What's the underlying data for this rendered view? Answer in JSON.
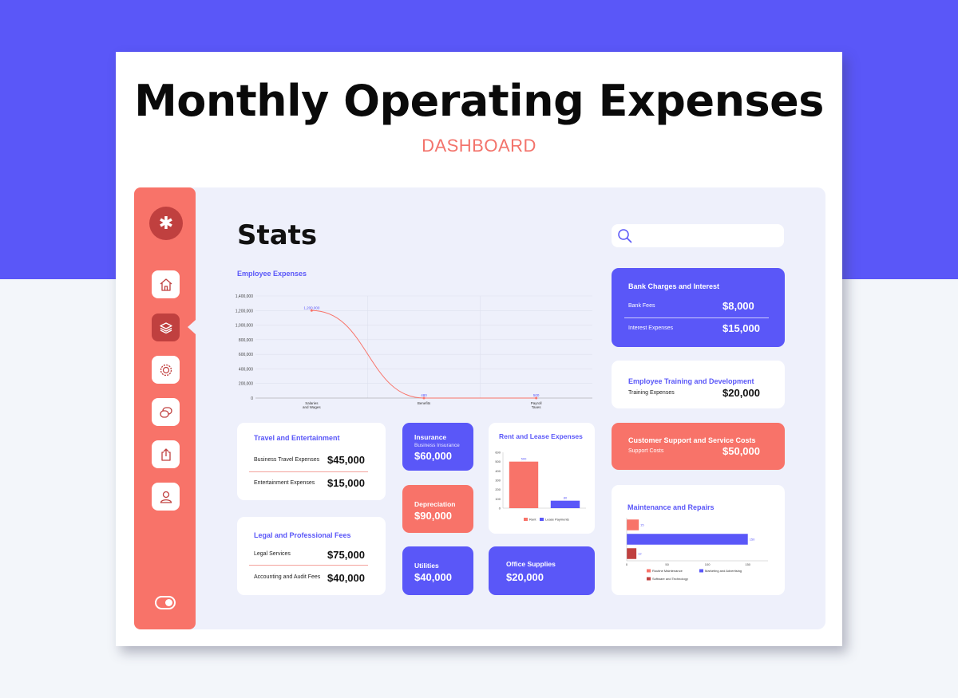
{
  "header": {
    "title": "Monthly Operating Expenses",
    "subtitle": "DASHBOARD"
  },
  "dashboard": {
    "title": "Stats"
  },
  "sidebar": {
    "items": [
      {
        "icon": "home-icon"
      },
      {
        "icon": "stack-icon",
        "active": true
      },
      {
        "icon": "gear-icon"
      },
      {
        "icon": "chat-icon"
      },
      {
        "icon": "upload-icon"
      },
      {
        "icon": "user-icon"
      }
    ],
    "logo_icon": "asterisk-icon",
    "logo_glyph": "✱",
    "toggle_icon": "toggle-icon"
  },
  "search": {
    "placeholder": ""
  },
  "employee_expenses": {
    "title": "Employee Expenses",
    "point_labels": [
      "1,200,000",
      "480",
      "500"
    ]
  },
  "travel": {
    "title": "Travel and Entertainment",
    "rows": [
      {
        "label": "Business Travel Expenses",
        "value": "$45,000"
      },
      {
        "label": "Entertainment Expenses",
        "value": "$15,000"
      }
    ]
  },
  "legal": {
    "title": "Legal and Professional Fees",
    "rows": [
      {
        "label": "Legal Services",
        "value": "$75,000"
      },
      {
        "label": "Accounting and Audit Fees",
        "value": "$40,000"
      }
    ]
  },
  "insurance": {
    "title": "Insurance",
    "sub": "Business Insurance",
    "value": "$60,000"
  },
  "depreciation": {
    "title": "Depreciation",
    "value": "$90,000"
  },
  "utilities": {
    "title": "Utilities",
    "value": "$40,000"
  },
  "office_supplies": {
    "title": "Office Supplies",
    "value": "$20,000"
  },
  "rent": {
    "title": "Rent and Lease Expenses"
  },
  "bank": {
    "title": "Bank Charges and Interest",
    "rows": [
      {
        "label": "Bank Fees",
        "value": "$8,000"
      },
      {
        "label": "Interest Expenses",
        "value": "$15,000"
      }
    ]
  },
  "training": {
    "title": "Employee Training and Development",
    "label": "Training Expenses",
    "value": "$20,000"
  },
  "support": {
    "title": "Customer Support and Service Costs",
    "label": "Support Costs",
    "value": "$50,000"
  },
  "maintenance": {
    "title": "Maintenance and Repairs"
  },
  "colors": {
    "accent": "#5a57f8",
    "coral": "#f87369",
    "dark_red": "#c0403f"
  },
  "chart_data": [
    {
      "type": "line",
      "title": "Employee Expenses",
      "categories": [
        "Salaries and Wages",
        "Benefits",
        "Payroll Taxes"
      ],
      "series": [
        {
          "values": [
            1200000,
            480,
            500
          ]
        }
      ],
      "ylim": [
        0,
        1400000
      ],
      "yticks": [
        "0",
        "200,000",
        "400,000",
        "600,000",
        "800,000",
        "1,000,000",
        "1,200,000",
        "1,400,000"
      ],
      "grid": true
    },
    {
      "type": "bar",
      "title": "Rent and Lease Expenses",
      "categories": [
        "Rent",
        "Lease Payments"
      ],
      "values": [
        500,
        80
      ],
      "ylim": [
        0,
        600
      ],
      "yticks": [
        "0",
        "100",
        "200",
        "300",
        "400",
        "500",
        "600"
      ],
      "legend": [
        "Rent",
        "Lease Payments"
      ],
      "legend_position": "bottom"
    },
    {
      "type": "bar",
      "orientation": "horizontal",
      "title": "Maintenance and Repairs",
      "categories": [
        "Routine Maintenance",
        "Marketing and Advertising",
        "Software and Technology"
      ],
      "values": [
        15,
        150,
        12
      ],
      "xlim": [
        0,
        175
      ],
      "xticks": [
        "0",
        "50",
        "100",
        "150"
      ],
      "legend": [
        "Routine Maintenance",
        "Marketing and Advertising",
        "Software and Technology"
      ],
      "legend_position": "bottom"
    }
  ]
}
